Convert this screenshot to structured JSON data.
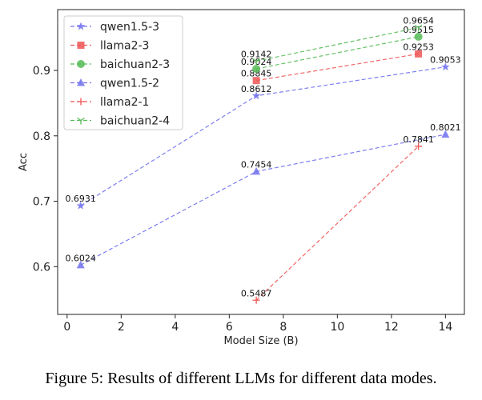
{
  "chart_data": {
    "type": "line",
    "xlabel": "Model Size (B)",
    "ylabel": "Acc",
    "xlim": [
      -0.35,
      14.7
    ],
    "ylim": [
      0.527,
      0.993
    ],
    "xticks": [
      0,
      2,
      4,
      6,
      8,
      10,
      12,
      14
    ],
    "yticks": [
      0.6,
      0.7,
      0.8,
      0.9
    ],
    "ytick_labels": [
      "0.6",
      "0.7",
      "0.8",
      "0.9"
    ],
    "grid": false,
    "legend_position": "top-left",
    "series": [
      {
        "name": "qwen1.5-3",
        "color": "#7070ee",
        "marker": "star",
        "x": [
          0.5,
          7,
          14
        ],
        "y": [
          0.6931,
          0.8612,
          0.9053
        ],
        "labels": [
          "0.6931",
          "0.8612",
          "0.9053"
        ]
      },
      {
        "name": "llama2-3",
        "color": "#ee5555",
        "marker": "square",
        "x": [
          7,
          13
        ],
        "y": [
          0.8845,
          0.9253
        ],
        "labels": [
          "0.8845",
          "0.9253"
        ]
      },
      {
        "name": "baichuan2-3",
        "color": "#55bb55",
        "marker": "circle",
        "x": [
          7,
          13
        ],
        "y": [
          0.9024,
          0.9515
        ],
        "labels": [
          "0.9024",
          "0.9515"
        ]
      },
      {
        "name": "qwen1.5-2",
        "color": "#7070ee",
        "marker": "triangle",
        "x": [
          0.5,
          7,
          14
        ],
        "y": [
          0.6024,
          0.7454,
          0.8021
        ],
        "labels": [
          "0.6024",
          "0.7454",
          "0.8021"
        ]
      },
      {
        "name": "llama2-1",
        "color": "#ee5555",
        "marker": "plus",
        "x": [
          7,
          13
        ],
        "y": [
          0.5487,
          0.7841
        ],
        "labels": [
          "0.5487",
          "0.7841"
        ]
      },
      {
        "name": "baichuan2-4",
        "color": "#55bb55",
        "marker": "tri-down",
        "x": [
          7,
          13
        ],
        "y": [
          0.9142,
          0.9654
        ],
        "labels": [
          "0.9142",
          "0.9654"
        ]
      }
    ]
  },
  "caption": {
    "label": "Figure 5:",
    "text": " Results of different LLMs for different data modes."
  }
}
